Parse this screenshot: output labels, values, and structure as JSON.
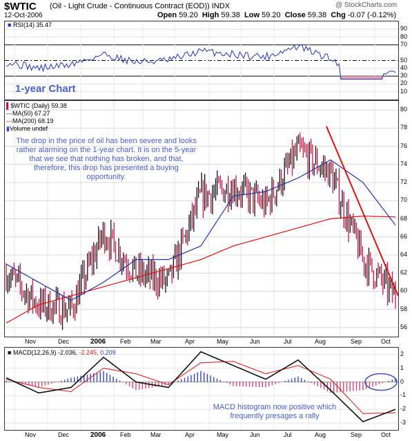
{
  "header": {
    "symbol": "$WTIC",
    "description": "(Oil - Light Crude - Continuous Contract (EOD)) INDX",
    "copyright": "@ StockCharts.com",
    "date": "12-Oct-2006",
    "open_label": "Open",
    "open": "59.20",
    "high_label": "High",
    "high": "59.38",
    "low_label": "Low",
    "low": "59.20",
    "close_label": "Close",
    "close": "59.38",
    "chg_label": "Chg",
    "chg": "-0.07 (-0.12%)"
  },
  "rsi_panel": {
    "legend": "RSI(14) 35.47",
    "label": "1-year Chart",
    "ticks": [
      "90",
      "80",
      "70",
      "50",
      "40",
      "30",
      "20",
      "10"
    ]
  },
  "price_panel": {
    "legend_symbol": "$WTIC (Daily) 59.38",
    "legend_ma50": "MA(50) 67.27",
    "legend_ma200": "MA(200) 68.19",
    "legend_volume": "Volume undef",
    "annotation": "The drop in the price of oil has been severe and looks rather alarming on the 1-year chart. It is on the 5-year that we see that nothing has broken, and that, therefore, this drop has presented a buying opportunity.",
    "ticks": [
      "80",
      "78",
      "76",
      "74",
      "72",
      "70",
      "68",
      "66",
      "64",
      "62",
      "60",
      "58",
      "56"
    ]
  },
  "macd_panel": {
    "legend_name": "MACD(12,26,9)",
    "legend_macd": "-2.036,",
    "legend_signal": "-2.245,",
    "legend_hist": "0.209",
    "annotation": "MACD histogram now positive which frequently presages a rally",
    "ticks": [
      "2",
      "1",
      "0",
      "-1",
      "-2",
      "-3"
    ]
  },
  "x_axis": [
    "Nov",
    "Dec",
    "2006",
    "Feb",
    "Mar",
    "Apr",
    "May",
    "Jun",
    "Jul",
    "Aug",
    "Sep",
    "Oct"
  ],
  "colors": {
    "accent_text": "#4a5ec4",
    "ma50": "#2233aa",
    "ma200": "#dd1111",
    "trendline": "#dd1111",
    "rsi_line": "#2233aa",
    "rsi_fill_low": "#e8a0b8",
    "macd_line": "#111111",
    "signal_line": "#dd1111",
    "histogram": "#3344bb"
  },
  "chart_data": {
    "type": "line",
    "title": "$WTIC (Oil - Light Crude - Continuous Contract (EOD))",
    "period": "Oct 2005 - Oct 2006, daily",
    "price": {
      "months": [
        "Oct",
        "Nov",
        "Dec",
        "Jan",
        "Feb",
        "Mar",
        "Apr",
        "May",
        "Jun",
        "Jul",
        "Aug",
        "Sep",
        "Oct"
      ],
      "close_approx": [
        62.0,
        58.5,
        58.0,
        66.5,
        62.0,
        61.0,
        70.5,
        71.5,
        69.5,
        75.5,
        73.0,
        63.5,
        59.4
      ],
      "ma50_approx": [
        63.0,
        61.0,
        59.0,
        61.0,
        63.5,
        63.5,
        65.0,
        70.5,
        71.0,
        72.5,
        74.5,
        72.0,
        67.3
      ],
      "ma200_approx": [
        56.5,
        58.5,
        59.5,
        60.5,
        61.5,
        62.5,
        63.5,
        65.0,
        66.0,
        67.0,
        68.0,
        68.3,
        68.2
      ],
      "ylim": [
        55,
        81
      ]
    },
    "rsi": {
      "period": 14,
      "last": 35.47,
      "ylim": [
        0,
        100
      ],
      "levels": [
        70,
        50,
        30
      ]
    },
    "macd": {
      "params": "12,26,9",
      "macd": -2.036,
      "signal": -2.245,
      "histogram": 0.209,
      "ylim": [
        -3.5,
        2.5
      ]
    }
  }
}
